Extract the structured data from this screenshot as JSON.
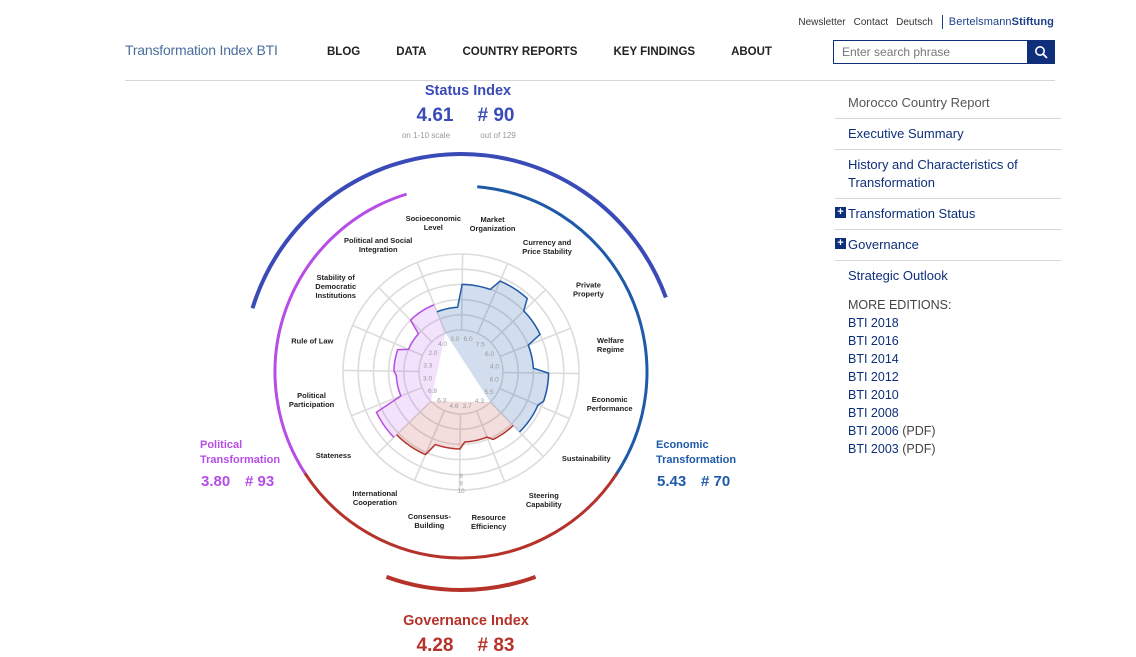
{
  "utility": {
    "newsletter": "Newsletter",
    "contact": "Contact",
    "deutsch": "Deutsch",
    "brand_regular": "Bertelsmann",
    "brand_bold": "Stiftung"
  },
  "logo": "Transformation Index BTI",
  "nav": [
    "BLOG",
    "DATA",
    "COUNTRY REPORTS",
    "KEY FINDINGS",
    "ABOUT"
  ],
  "search": {
    "placeholder": "Enter search phrase",
    "icon": "search-icon"
  },
  "colors": {
    "accent": "#0f2f7a",
    "status": "#3a4bb8",
    "political": "#b64de6",
    "economic": "#1f5aa8",
    "governance": "#b5332a"
  },
  "status_index": {
    "title": "Status Index",
    "score": "4.61",
    "rank": "# 90",
    "score_note": "on 1-10 scale",
    "rank_note": "out of 129"
  },
  "political": {
    "title_1": "Political",
    "title_2": "Transformation",
    "score": "3.80",
    "rank": "# 93"
  },
  "economic": {
    "title_1": "Economic",
    "title_2": "Transformation",
    "score": "5.43",
    "rank": "# 70"
  },
  "governance": {
    "title": "Governance Index",
    "score": "4.28",
    "rank": "# 83"
  },
  "radar": {
    "ring_labels": [
      "8",
      "9",
      "10"
    ],
    "categories": [
      {
        "lines": [
          "Market",
          "Organization"
        ],
        "value": "6.0",
        "group": "economic"
      },
      {
        "lines": [
          "Currency and",
          "Price Stability"
        ],
        "value": "7.5",
        "group": "economic"
      },
      {
        "lines": [
          "Private",
          "Property"
        ],
        "value": "6.0",
        "group": "economic"
      },
      {
        "lines": [
          "Welfare",
          "Regime"
        ],
        "value": "4.0",
        "group": "economic"
      },
      {
        "lines": [
          "Economic",
          "Performance"
        ],
        "value": "6.0",
        "group": "economic"
      },
      {
        "lines": [
          "Sustainability"
        ],
        "value": "5.5",
        "group": "economic"
      },
      {
        "lines": [
          "Steering",
          "Capability"
        ],
        "value": "4.3",
        "group": "governance"
      },
      {
        "lines": [
          "Resource",
          "Efficiency"
        ],
        "value": "3.7",
        "group": "governance"
      },
      {
        "lines": [
          "Consensus-",
          "Building"
        ],
        "value": "4.6",
        "group": "governance"
      },
      {
        "lines": [
          "International",
          "Cooperation"
        ],
        "value": "6.3",
        "group": "governance"
      },
      {
        "lines": [
          "Stateness"
        ],
        "value": "6.8",
        "group": "political"
      },
      {
        "lines": [
          "Political",
          "Participation"
        ],
        "value": "3.0",
        "group": "political"
      },
      {
        "lines": [
          "Rule of Law"
        ],
        "value": "3.3",
        "group": "political"
      },
      {
        "lines": [
          "Stability of",
          "Democratic",
          "Institutions"
        ],
        "value": "2.0",
        "group": "political"
      },
      {
        "lines": [
          "Political and Social",
          "Integration"
        ],
        "value": "4.0",
        "group": "political"
      },
      {
        "lines": [
          "Socioeconomic",
          "Level"
        ],
        "value": "3.0",
        "group": "economic"
      }
    ]
  },
  "sidebar": {
    "title": "Morocco Country Report",
    "items": [
      {
        "label": "Executive Summary",
        "expandable": false
      },
      {
        "label": "History and Characteristics of Transformation",
        "expandable": false
      },
      {
        "label": "Transformation Status",
        "expandable": true
      },
      {
        "label": "Governance",
        "expandable": true
      },
      {
        "label": "Strategic Outlook",
        "expandable": false
      }
    ],
    "editions_label": "MORE EDITIONS:",
    "editions": [
      {
        "year": "BTI 2018",
        "pdf": ""
      },
      {
        "year": "BTI 2016",
        "pdf": ""
      },
      {
        "year": "BTI 2014",
        "pdf": ""
      },
      {
        "year": "BTI 2012",
        "pdf": ""
      },
      {
        "year": "BTI 2010",
        "pdf": ""
      },
      {
        "year": "BTI 2008",
        "pdf": ""
      },
      {
        "year": "BTI 2006",
        "pdf": "(PDF)"
      },
      {
        "year": "BTI 2003",
        "pdf": "(PDF)"
      }
    ]
  }
}
